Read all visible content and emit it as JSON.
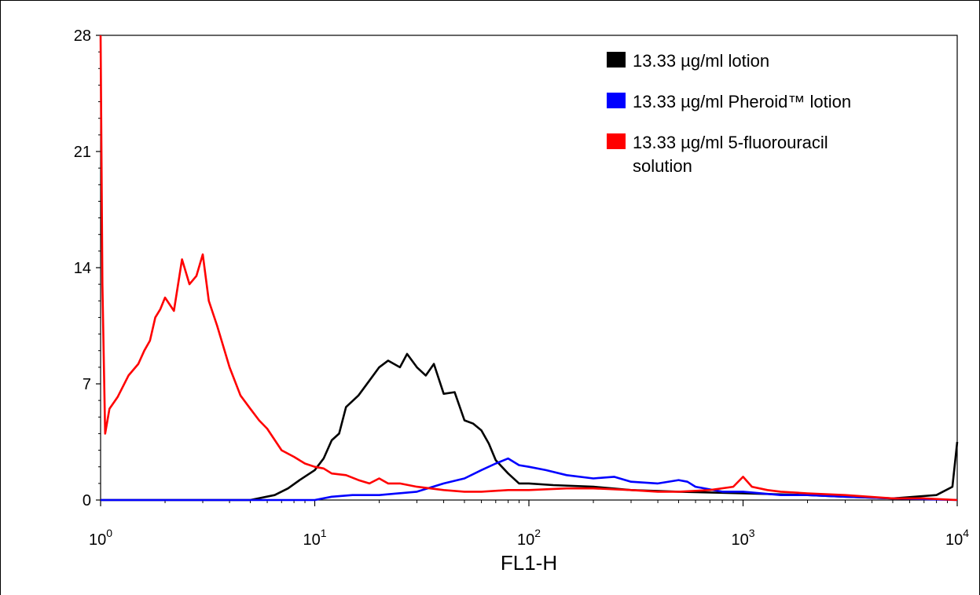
{
  "chart_data": {
    "type": "line",
    "title": "",
    "xlabel": "FL1-H",
    "ylabel": "",
    "x_scale": "log",
    "xlim": [
      1,
      10000
    ],
    "ylim": [
      0,
      28
    ],
    "grid": false,
    "legend_position": "top-right",
    "x_ticks": [
      {
        "value": 1,
        "base": "10",
        "exp": "0"
      },
      {
        "value": 10,
        "base": "10",
        "exp": "1"
      },
      {
        "value": 100,
        "base": "10",
        "exp": "2"
      },
      {
        "value": 1000,
        "base": "10",
        "exp": "3"
      },
      {
        "value": 10000,
        "base": "10",
        "exp": "4"
      }
    ],
    "y_ticks": [
      0,
      7,
      14,
      21,
      28
    ],
    "series": [
      {
        "name": "13.33 µg/ml lotion",
        "color": "#000000",
        "legend_lines": [
          "13.33 µg/ml lotion"
        ],
        "x": [
          1,
          5,
          6.5,
          7.5,
          8.5,
          10,
          11,
          12,
          13,
          14,
          16,
          18,
          20,
          22,
          25,
          27,
          30,
          33,
          36,
          40,
          45,
          50,
          55,
          60,
          65,
          70,
          80,
          90,
          100,
          130,
          200,
          300,
          500,
          1000,
          2000,
          3000,
          5000,
          8000,
          9500,
          10000
        ],
        "y": [
          0,
          0,
          0.3,
          0.7,
          1.2,
          1.8,
          2.5,
          3.6,
          4.0,
          5.6,
          6.3,
          7.2,
          8.0,
          8.4,
          8.0,
          8.8,
          8.0,
          7.5,
          8.2,
          6.4,
          6.5,
          4.8,
          4.6,
          4.2,
          3.4,
          2.4,
          1.6,
          1.0,
          1.0,
          0.9,
          0.8,
          0.6,
          0.5,
          0.4,
          0.3,
          0.2,
          0.1,
          0.3,
          0.8,
          3.5
        ]
      },
      {
        "name": "13.33 µg/ml Pheroid™ lotion",
        "color": "#0000ff",
        "legend_lines": [
          "13.33 µg/ml Pheroid™ lotion"
        ],
        "x": [
          1,
          10,
          12,
          15,
          20,
          30,
          40,
          50,
          60,
          70,
          80,
          90,
          100,
          120,
          150,
          200,
          250,
          300,
          400,
          500,
          550,
          600,
          800,
          1000,
          1500,
          2000,
          3000,
          5000,
          10000
        ],
        "y": [
          0,
          0,
          0.2,
          0.3,
          0.3,
          0.5,
          1.0,
          1.3,
          1.8,
          2.2,
          2.5,
          2.1,
          2.0,
          1.8,
          1.5,
          1.3,
          1.4,
          1.1,
          1.0,
          1.2,
          1.1,
          0.8,
          0.5,
          0.5,
          0.3,
          0.3,
          0.2,
          0.1,
          0
        ]
      },
      {
        "name": "13.33 µg/ml 5-fluorouracil solution",
        "color": "#ff0000",
        "legend_lines": [
          "13.33 µg/ml 5-fluorouracil",
          "solution"
        ],
        "x": [
          1,
          1.02,
          1.05,
          1.1,
          1.2,
          1.35,
          1.5,
          1.6,
          1.7,
          1.8,
          1.9,
          2.0,
          2.2,
          2.4,
          2.6,
          2.8,
          3.0,
          3.2,
          3.5,
          4.0,
          4.5,
          5.0,
          5.5,
          6.0,
          7.0,
          8.0,
          9.0,
          10,
          11,
          12,
          14,
          16,
          18,
          20,
          22,
          25,
          30,
          40,
          50,
          60,
          80,
          100,
          150,
          200,
          300,
          400,
          500,
          700,
          900,
          1000,
          1100,
          1300,
          1500,
          2000,
          3000,
          5000,
          7000,
          10000
        ],
        "y": [
          28,
          13,
          4.0,
          5.5,
          6.2,
          7.5,
          8.2,
          9.0,
          9.6,
          11.0,
          11.5,
          12.2,
          11.4,
          14.5,
          13.0,
          13.5,
          14.8,
          12.0,
          10.5,
          8.0,
          6.3,
          5.5,
          4.8,
          4.3,
          3.0,
          2.6,
          2.2,
          2.0,
          1.9,
          1.6,
          1.5,
          1.2,
          1.0,
          1.3,
          1.0,
          1.0,
          0.8,
          0.6,
          0.5,
          0.5,
          0.6,
          0.6,
          0.7,
          0.7,
          0.6,
          0.5,
          0.5,
          0.6,
          0.8,
          1.4,
          0.8,
          0.6,
          0.5,
          0.4,
          0.3,
          0.1,
          0.1,
          0
        ]
      }
    ]
  }
}
